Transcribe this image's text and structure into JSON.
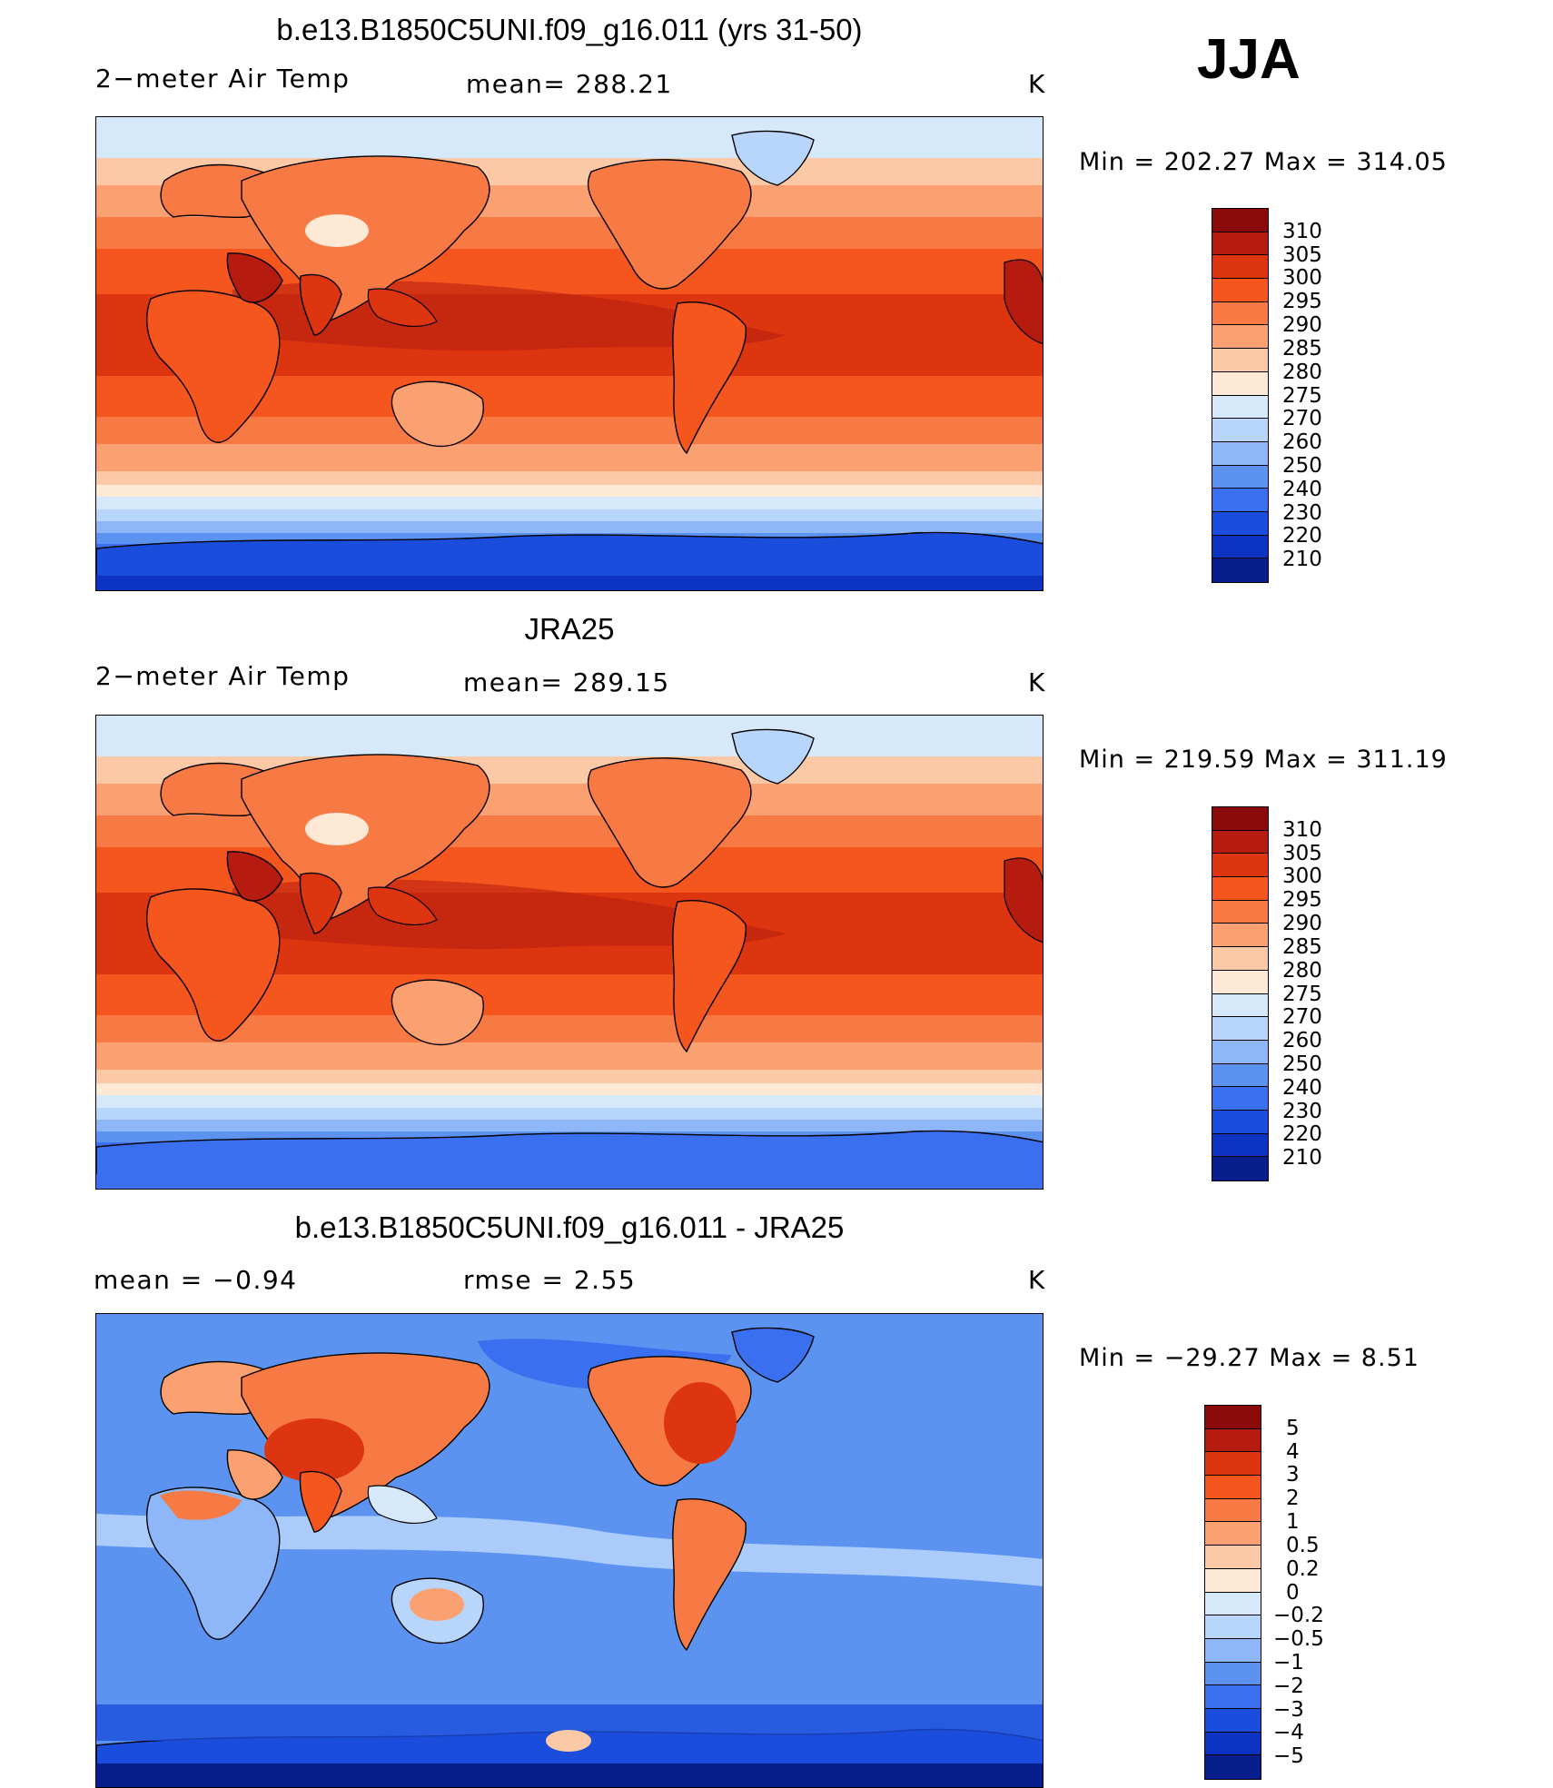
{
  "season": "JJA",
  "units": "K",
  "panels": [
    {
      "title": "b.e13.B1850C5UNI.f09_g16.011 (yrs 31-50)",
      "left_label": "2−meter Air Temp",
      "center_label": "mean=  288.21",
      "units": "K",
      "minmax": "Min  =  202.27  Max  =  314.05",
      "variant": "abs"
    },
    {
      "title": "JRA25",
      "left_label": "2−meter Air Temp",
      "center_label": "mean=  289.15",
      "units": "K",
      "minmax": "Min  =  219.59  Max  =  311.19",
      "variant": "abs2"
    },
    {
      "title": "b.e13.B1850C5UNI.f09_g16.011 - JRA25",
      "left_label": "mean  =     −0.94",
      "center_label": "rmse  =     2.55",
      "units": "K",
      "minmax": "Min  =  −29.27  Max  =      8.51",
      "variant": "diff"
    }
  ],
  "colorbars": {
    "abs": {
      "levels": [
        "310",
        "305",
        "300",
        "295",
        "290",
        "285",
        "280",
        "275",
        "270",
        "260",
        "250",
        "240",
        "230",
        "220",
        "210"
      ],
      "colors": [
        "#8b0a0a",
        "#b51b0e",
        "#dc3510",
        "#f4561e",
        "#f77a45",
        "#fba070",
        "#fcc9a6",
        "#fde9d6",
        "#d6e9fb",
        "#b8d6fb",
        "#8db7f9",
        "#5c93f1",
        "#3a6fef",
        "#1a4ddc",
        "#0c33c2",
        "#071e8c"
      ]
    },
    "diff": {
      "levels": [
        "5",
        "4",
        "3",
        "2",
        "1",
        "0.5",
        "0.2",
        "0",
        "−0.2",
        "−0.5",
        "−1",
        "−2",
        "−3",
        "−4",
        "−5"
      ],
      "colors": [
        "#8b0a0a",
        "#b51b0e",
        "#dc3510",
        "#f4561e",
        "#f77a45",
        "#fba070",
        "#fcc9a6",
        "#fde9d6",
        "#d6e9fb",
        "#b8d6fb",
        "#8db7f9",
        "#5c93f1",
        "#3a6fef",
        "#1a4ddc",
        "#0c33c2",
        "#071e8c"
      ]
    }
  }
}
